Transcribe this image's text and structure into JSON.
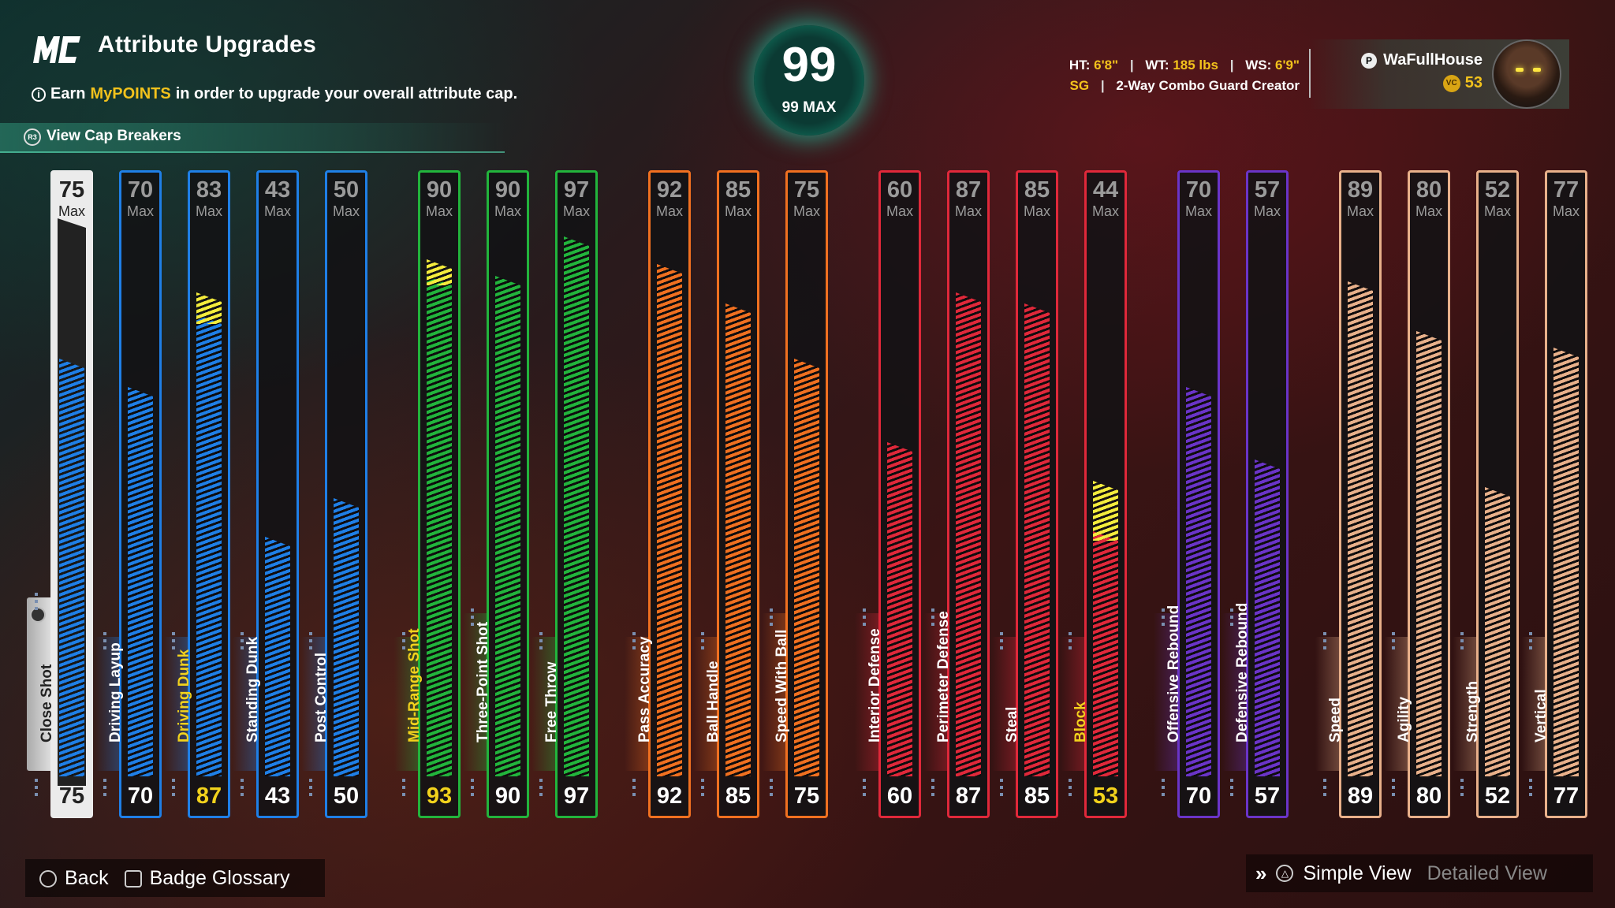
{
  "header": {
    "logo_text": "MC",
    "title": "Attribute Upgrades",
    "earn_prefix": "Earn",
    "earn_highlight": "MyPOINTS",
    "earn_suffix": "in order to upgrade your overall attribute cap.",
    "cap_button_icon": "R3",
    "cap_button_label": "View Cap Breakers"
  },
  "overall": {
    "value": "99",
    "max_label": "99 MAX"
  },
  "player": {
    "ht_label": "HT:",
    "ht_value": "6'8\"",
    "wt_label": "WT:",
    "wt_value": "185 lbs",
    "ws_label": "WS:",
    "ws_value": "6'9\"",
    "position": "SG",
    "archetype": "2-Way Combo Guard Creator",
    "username": "WaFullHouse",
    "vc": "53",
    "vc_icon": "VC"
  },
  "attributes": [
    {
      "name": "Close Shot",
      "max": "75",
      "current": "75",
      "group": "finishing",
      "selected": true,
      "fill": 75,
      "boost": 0
    },
    {
      "name": "Driving Layup",
      "max": "70",
      "current": "70",
      "group": "finishing",
      "fill": 70,
      "boost": 0
    },
    {
      "name": "Driving Dunk",
      "max": "83",
      "current": "87",
      "group": "finishing",
      "fill": 83,
      "boost": 4,
      "highlight": true
    },
    {
      "name": "Standing Dunk",
      "max": "43",
      "current": "43",
      "group": "finishing",
      "fill": 43,
      "boost": 0
    },
    {
      "name": "Post Control",
      "max": "50",
      "current": "50",
      "group": "finishing",
      "fill": 50,
      "boost": 0
    },
    {
      "name": "Mid-Range Shot",
      "max": "90",
      "current": "93",
      "group": "shooting",
      "fill": 90,
      "boost": 3,
      "highlight": true
    },
    {
      "name": "Three-Point Shot",
      "max": "90",
      "current": "90",
      "group": "shooting",
      "fill": 90,
      "boost": 0
    },
    {
      "name": "Free Throw",
      "max": "97",
      "current": "97",
      "group": "shooting",
      "fill": 97,
      "boost": 0
    },
    {
      "name": "Pass Accuracy",
      "max": "92",
      "current": "92",
      "group": "playmaking",
      "fill": 92,
      "boost": 0
    },
    {
      "name": "Ball Handle",
      "max": "85",
      "current": "85",
      "group": "playmaking",
      "fill": 85,
      "boost": 0
    },
    {
      "name": "Speed With Ball",
      "max": "75",
      "current": "75",
      "group": "playmaking",
      "fill": 75,
      "boost": 0
    },
    {
      "name": "Interior Defense",
      "max": "60",
      "current": "60",
      "group": "defense",
      "fill": 60,
      "boost": 0
    },
    {
      "name": "Perimeter Defense",
      "max": "87",
      "current": "87",
      "group": "defense",
      "fill": 87,
      "boost": 0
    },
    {
      "name": "Steal",
      "max": "85",
      "current": "85",
      "group": "defense",
      "fill": 85,
      "boost": 0
    },
    {
      "name": "Block",
      "max": "44",
      "current": "53",
      "group": "defense",
      "fill": 44,
      "boost": 9,
      "highlight": true
    },
    {
      "name": "Offensive Rebound",
      "max": "70",
      "current": "70",
      "group": "rebounding",
      "fill": 70,
      "boost": 0
    },
    {
      "name": "Defensive Rebound",
      "max": "57",
      "current": "57",
      "group": "rebounding",
      "fill": 57,
      "boost": 0
    },
    {
      "name": "Speed",
      "max": "89",
      "current": "89",
      "group": "physicals",
      "fill": 89,
      "boost": 0
    },
    {
      "name": "Agility",
      "max": "80",
      "current": "80",
      "group": "physicals",
      "fill": 80,
      "boost": 0
    },
    {
      "name": "Strength",
      "max": "52",
      "current": "52",
      "group": "physicals",
      "fill": 52,
      "boost": 0
    },
    {
      "name": "Vertical",
      "max": "77",
      "current": "77",
      "group": "physicals",
      "fill": 77,
      "boost": 0
    }
  ],
  "max_label": "Max",
  "group_colors": {
    "finishing": "#1f7fe6",
    "shooting": "#22b43c",
    "playmaking": "#f07020",
    "defense": "#e0283a",
    "rebounding": "#6a34c8",
    "physicals": "#e8b08a"
  },
  "highlight_color": "#f2d21c",
  "footer": {
    "back_label": "Back",
    "glossary_label": "Badge Glossary",
    "simple_view_label": "Simple View",
    "detailed_view_label": "Detailed View"
  }
}
